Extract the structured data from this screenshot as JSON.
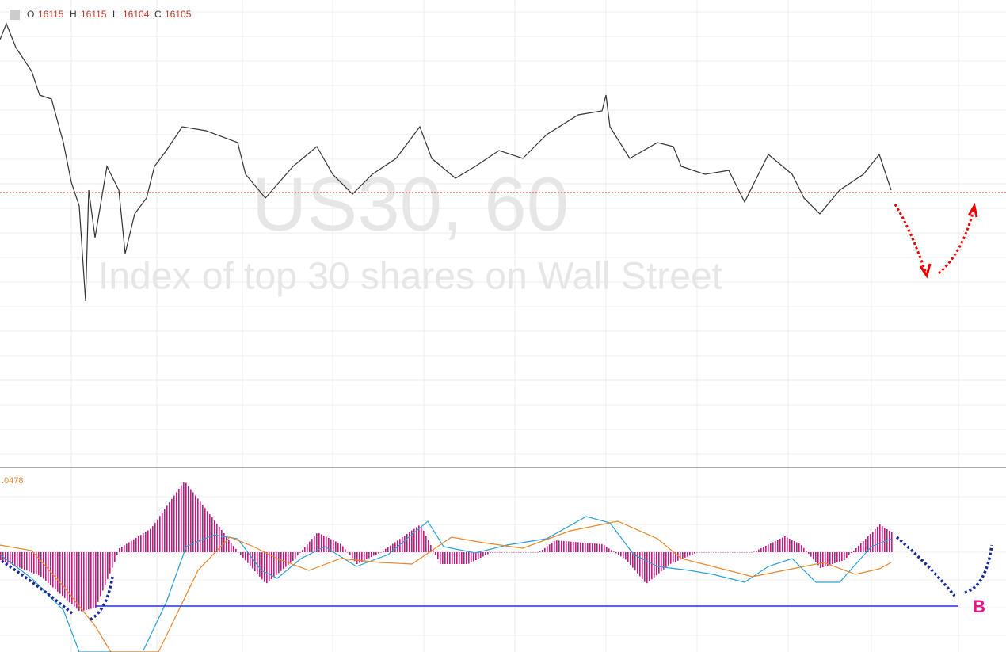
{
  "header": {
    "open_label": "O",
    "open": 16115,
    "high_label": "H",
    "high": 16115,
    "low_label": "L",
    "low": 16104,
    "close_label": "C",
    "close": 16105
  },
  "watermark": {
    "symbol": "US30, 60",
    "description": "Index of top 30 shares on Wall Street"
  },
  "indicator": {
    "value": ".0478"
  },
  "annotation": {
    "label": "B"
  }
}
